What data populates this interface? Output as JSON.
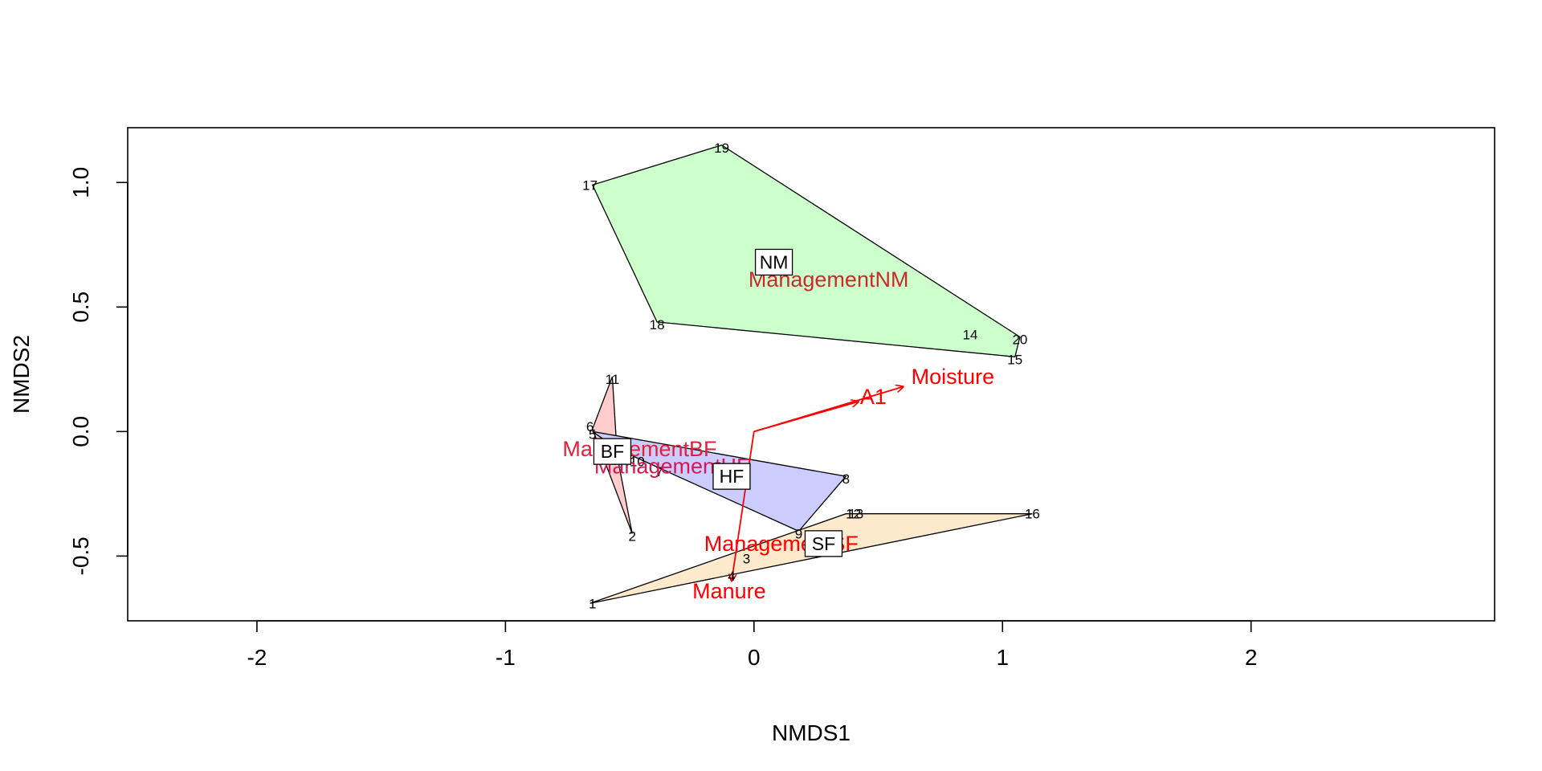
{
  "chart_data": {
    "type": "scatter",
    "title": "",
    "xlabel": "NMDS1",
    "ylabel": "NMDS2",
    "xlim": [
      -2.52,
      2.98
    ],
    "ylim": [
      -0.76,
      1.22
    ],
    "x_ticks": [
      {
        "value": -2,
        "label": "-2"
      },
      {
        "value": -1,
        "label": "-1"
      },
      {
        "value": 0,
        "label": "0"
      },
      {
        "value": 1,
        "label": "1"
      },
      {
        "value": 2,
        "label": "2"
      }
    ],
    "y_ticks": [
      {
        "value": -0.5,
        "label": "-0.5"
      },
      {
        "value": 0,
        "label": "0.0"
      },
      {
        "value": 0.5,
        "label": "0.5"
      },
      {
        "value": 1,
        "label": "1.0"
      }
    ],
    "sites": [
      {
        "label": "1",
        "x": -0.65,
        "y": -0.69
      },
      {
        "label": "2",
        "x": -0.49,
        "y": -0.42
      },
      {
        "label": "3",
        "x": -0.03,
        "y": -0.51
      },
      {
        "label": "4",
        "x": -0.09,
        "y": -0.58
      },
      {
        "label": "5",
        "x": -0.65,
        "y": -0.01
      },
      {
        "label": "6",
        "x": -0.66,
        "y": 0.02
      },
      {
        "label": "7",
        "x": -0.38,
        "y": -0.16
      },
      {
        "label": "8",
        "x": 0.37,
        "y": -0.19
      },
      {
        "label": "9",
        "x": 0.18,
        "y": -0.41
      },
      {
        "label": "10",
        "x": -0.47,
        "y": -0.12
      },
      {
        "label": "11",
        "x": -0.57,
        "y": 0.21
      },
      {
        "label": "12",
        "x": 0.4,
        "y": -0.33
      },
      {
        "label": "13",
        "x": 0.41,
        "y": -0.33
      },
      {
        "label": "14",
        "x": 0.87,
        "y": 0.39
      },
      {
        "label": "15",
        "x": 1.05,
        "y": 0.29
      },
      {
        "label": "16",
        "x": 1.12,
        "y": -0.33
      },
      {
        "label": "17",
        "x": -0.66,
        "y": 0.99
      },
      {
        "label": "18",
        "x": -0.39,
        "y": 0.43
      },
      {
        "label": "19",
        "x": -0.13,
        "y": 1.14
      },
      {
        "label": "20",
        "x": 1.07,
        "y": 0.37
      }
    ],
    "hulls": [
      {
        "group": "NM",
        "color": "#ccffcc",
        "points": [
          [
            -0.65,
            0.99
          ],
          [
            -0.13,
            1.15
          ],
          [
            1.07,
            0.38
          ],
          [
            1.05,
            0.3
          ],
          [
            -0.39,
            0.44
          ]
        ],
        "label_x": 0.08,
        "label_y": 0.68
      },
      {
        "group": "BF",
        "color": "#ffcccc",
        "points": [
          [
            -0.57,
            0.22
          ],
          [
            -0.65,
            0.01
          ],
          [
            -0.49,
            -0.41
          ],
          [
            -0.55,
            -0.1
          ]
        ],
        "label_x": -0.57,
        "label_y": -0.08
      },
      {
        "group": "HF",
        "color": "#ccccff",
        "points": [
          [
            -0.65,
            0.0
          ],
          [
            0.37,
            -0.18
          ],
          [
            0.18,
            -0.4
          ],
          [
            -0.55,
            -0.07
          ]
        ],
        "label_x": -0.09,
        "label_y": -0.18
      },
      {
        "group": "SF",
        "color": "#fde9cc",
        "points": [
          [
            -0.66,
            -0.69
          ],
          [
            0.37,
            -0.33
          ],
          [
            1.12,
            -0.33
          ]
        ],
        "label_x": 0.28,
        "label_y": -0.45
      }
    ],
    "vectors": [
      {
        "label": "A1",
        "x": 0.42,
        "y": 0.12,
        "label_x": 0.48,
        "label_y": 0.14
      },
      {
        "label": "Moisture",
        "x": 0.6,
        "y": 0.18,
        "label_x": 0.8,
        "label_y": 0.22
      },
      {
        "label": "Manure",
        "x": -0.09,
        "y": -0.6,
        "label_x": -0.1,
        "label_y": -0.64
      }
    ],
    "factor_centroids": [
      {
        "label": "ManagementNM",
        "x": 0.3,
        "y": 0.61,
        "color": "#cc2a2a"
      },
      {
        "label": "ManagementBF",
        "x": -0.46,
        "y": -0.07,
        "color": "#e0223a"
      },
      {
        "label": "ManagementHF",
        "x": -0.33,
        "y": -0.14,
        "color": "#d41a55"
      },
      {
        "label": "ManagementSF",
        "x": 0.11,
        "y": -0.45,
        "color": "#ff0000"
      }
    ],
    "colors": {
      "vector": "#ff0000",
      "hull_stroke": "#000000",
      "box_fill": "#ffffff"
    },
    "grid": false,
    "legend": "none"
  }
}
